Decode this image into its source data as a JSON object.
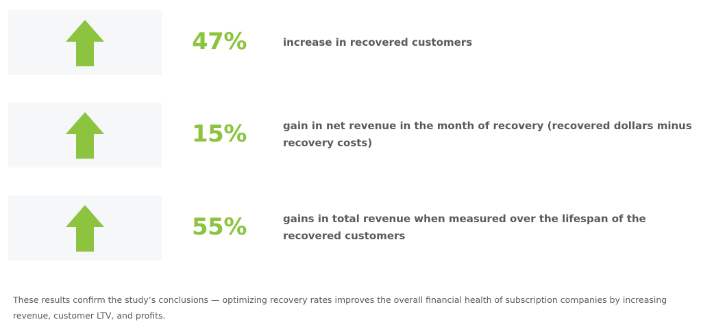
{
  "accent_color": "#8cc43f",
  "stats": [
    {
      "icon": "up-arrow-icon",
      "value": "47%",
      "description": "increase in recovered customers"
    },
    {
      "icon": "up-arrow-icon",
      "value": "15%",
      "description": "gain in net revenue in the month of recovery (recovered dollars minus recovery costs)"
    },
    {
      "icon": "up-arrow-icon",
      "value": "55%",
      "description": "gains in total revenue when measured over the lifespan of the recovered customers"
    }
  ],
  "footer": {
    "text": "These results confirm the study’s conclusions — optimizing recovery rates improves the overall financial health of subscription companies by increasing revenue, customer LTV, and profits."
  }
}
